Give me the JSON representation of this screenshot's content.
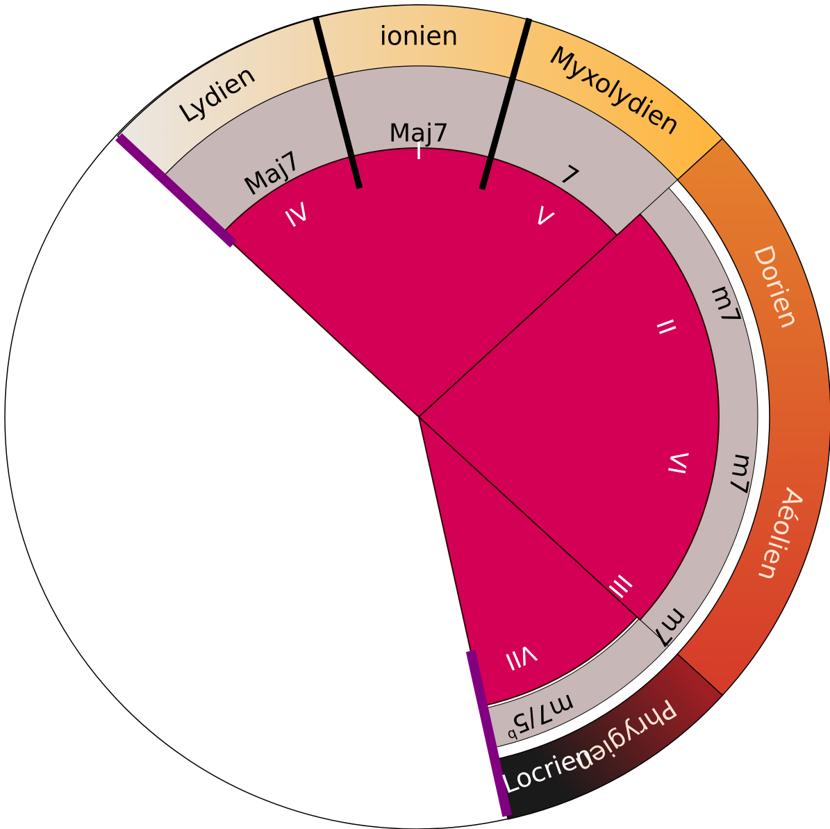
{
  "colors": {
    "degree_fill": "#d40055",
    "chord_ring": "#c8b7b7",
    "marker_black": "#000000",
    "marker_purple": "#800080",
    "major_gradient_start": "#ebe6e0",
    "major_gradient_end": "#ffb640",
    "minor_gradient_start": "#e5832c",
    "minor_gradient_end": "#d5392a",
    "locrian_gradient_start": "#9e1f24",
    "locrian_gradient_end": "#1a1a1a"
  },
  "modes": [
    {
      "id": "lydien",
      "label": "Lydien",
      "text_color": "#000000"
    },
    {
      "id": "ionien",
      "label": "ionien",
      "text_color": "#000000"
    },
    {
      "id": "myxolydien",
      "label": "Myxolydien",
      "text_color": "#000000"
    },
    {
      "id": "dorien",
      "label": "Dorien",
      "text_color": "#ffe5d5"
    },
    {
      "id": "aeolien",
      "label": "Aéolien",
      "text_color": "#ffe5d5"
    },
    {
      "id": "phrygien",
      "label": "Phrygien",
      "text_color": "#ffe5d5"
    },
    {
      "id": "locrien",
      "label": "Locrien",
      "text_color": "#ffffff"
    }
  ],
  "chords": [
    {
      "id": "IV",
      "label": "Maj7"
    },
    {
      "id": "I",
      "label": "Maj7"
    },
    {
      "id": "V",
      "label": "7"
    },
    {
      "id": "II",
      "label": "m7"
    },
    {
      "id": "VI",
      "label": "m7"
    },
    {
      "id": "III",
      "label": "m7"
    },
    {
      "id": "VII",
      "label": "m7/5",
      "superscript": "b"
    }
  ],
  "degrees": [
    "IV",
    "I",
    "V",
    "II",
    "VI",
    "III",
    "VII"
  ]
}
